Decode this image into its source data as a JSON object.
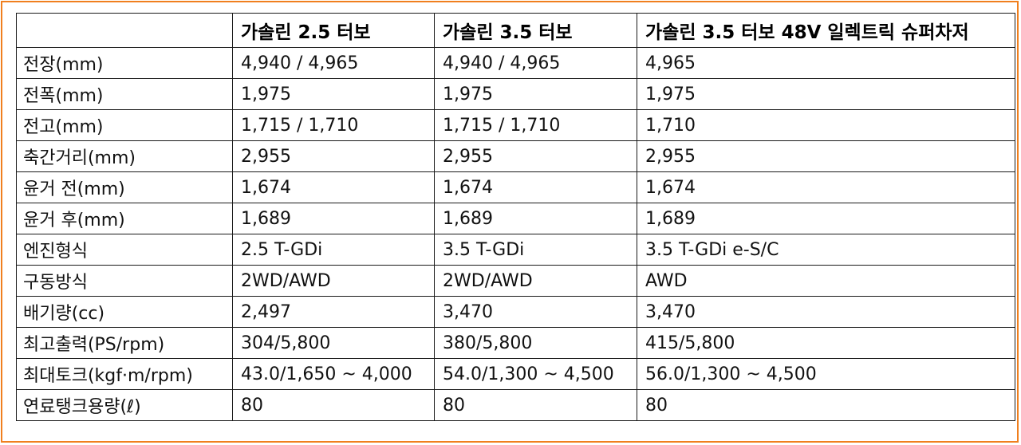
{
  "colors": {
    "border_accent": "#f07f1e",
    "grid_line": "#1a1a1a",
    "text": "#111111"
  },
  "table": {
    "headers": [
      "",
      "가솔린 2.5 터보",
      "가솔린 3.5 터보",
      "가솔린 3.5 터보 48V 일렉트릭 슈퍼차저"
    ],
    "rows": [
      [
        "전장(mm)",
        "4,940 / 4,965",
        "4,940 / 4,965",
        "4,965"
      ],
      [
        "전폭(mm)",
        "1,975",
        "1,975",
        "1,975"
      ],
      [
        "전고(mm)",
        "1,715 / 1,710",
        "1,715 / 1,710",
        "1,710"
      ],
      [
        "축간거리(mm)",
        "2,955",
        "2,955",
        "2,955"
      ],
      [
        "윤거 전(mm)",
        "1,674",
        "1,674",
        "1,674"
      ],
      [
        "윤거 후(mm)",
        "1,689",
        "1,689",
        "1,689"
      ],
      [
        "엔진형식",
        "2.5 T-GDi",
        "3.5 T-GDi",
        "3.5 T-GDi e-S/C"
      ],
      [
        "구동방식",
        "2WD/AWD",
        "2WD/AWD",
        "AWD"
      ],
      [
        "배기량(cc)",
        "2,497",
        "3,470",
        "3,470"
      ],
      [
        "최고출력(PS/rpm)",
        "304/5,800",
        "380/5,800",
        "415/5,800"
      ],
      [
        "최대토크(kgf·m/rpm)",
        "43.0/1,650 ~ 4,000",
        "54.0/1,300 ~ 4,500",
        "56.0/1,300 ~ 4,500"
      ],
      [
        "연료탱크용량(ℓ)",
        "80",
        "80",
        "80"
      ]
    ]
  }
}
